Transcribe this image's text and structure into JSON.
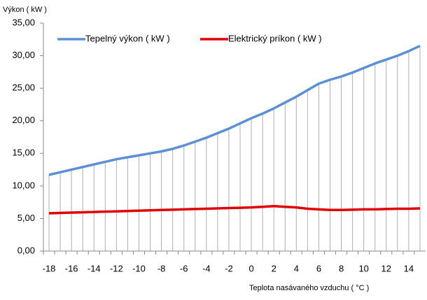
{
  "chart_data": {
    "type": "line",
    "ylabel": "Výkon ( kW )",
    "xlabel": "Teplota nasávaného vzduchu ( °C )",
    "categories": [
      "-18",
      null,
      "-16",
      null,
      "-14",
      null,
      "-12",
      null,
      "-10",
      null,
      "-8",
      null,
      "-6",
      null,
      "-4",
      null,
      "-2",
      null,
      "0",
      null,
      "2",
      null,
      "4",
      null,
      "6",
      null,
      "8",
      null,
      "10",
      null,
      "12",
      null,
      "14",
      null
    ],
    "series": [
      {
        "name": "Tepelný výkon ( kW )",
        "color": "#5b8fd6",
        "values": [
          11.7,
          12.1,
          12.5,
          12.9,
          13.3,
          13.7,
          14.1,
          14.4,
          14.7,
          15.0,
          15.3,
          15.7,
          16.2,
          16.8,
          17.4,
          18.1,
          18.8,
          19.6,
          20.4,
          21.1,
          21.9,
          22.8,
          23.7,
          24.7,
          25.7,
          26.3,
          26.8,
          27.4,
          28.1,
          28.8,
          29.4,
          30.0,
          30.7,
          31.5
        ]
      },
      {
        "name": "Elektrický príkon ( kW )",
        "color": "#e00000",
        "values": [
          5.8,
          5.85,
          5.9,
          5.95,
          6.0,
          6.05,
          6.1,
          6.15,
          6.2,
          6.25,
          6.3,
          6.35,
          6.4,
          6.45,
          6.5,
          6.55,
          6.6,
          6.65,
          6.7,
          6.8,
          6.9,
          6.8,
          6.7,
          6.5,
          6.4,
          6.3,
          6.3,
          6.35,
          6.4,
          6.4,
          6.45,
          6.5,
          6.5,
          6.55
        ]
      }
    ],
    "ylim": [
      0,
      35
    ],
    "yticks": [
      {
        "value": 0,
        "label": "0,00"
      },
      {
        "value": 5,
        "label": "5,00"
      },
      {
        "value": 10,
        "label": "10,00"
      },
      {
        "value": 15,
        "label": "15,00"
      },
      {
        "value": 20,
        "label": "20,00"
      },
      {
        "value": 25,
        "label": "25,00"
      },
      {
        "value": 30,
        "label": "30,00"
      },
      {
        "value": 35,
        "label": "35,00"
      }
    ],
    "drop_lines": true
  }
}
